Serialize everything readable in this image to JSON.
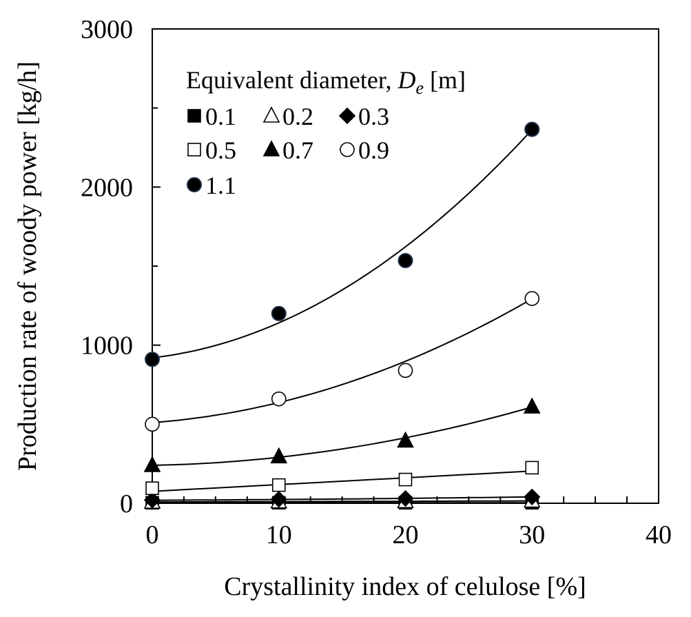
{
  "chart_data": {
    "type": "scatter",
    "xlabel": "Crystallinity index of celulose [%]",
    "ylabel": "Production rate of woody power [kg/h]",
    "xlim": [
      0,
      40
    ],
    "ylim": [
      0,
      3000
    ],
    "xticks": [
      0,
      10,
      20,
      30,
      40
    ],
    "yticks": [
      0,
      1000,
      2000,
      3000
    ],
    "grid": false,
    "legend": {
      "title_prefix": "Equivalent diameter, ",
      "title_symbol": "D",
      "title_subscript": "e",
      "title_unit": " [m]",
      "placement": "top-left"
    },
    "x": [
      0,
      10,
      20,
      30
    ],
    "series": [
      {
        "name": "0.1",
        "marker": "square-filled",
        "values": [
          3,
          3,
          3,
          3
        ],
        "fit": [
          3,
          0,
          0
        ]
      },
      {
        "name": "0.2",
        "marker": "triangle-open",
        "values": [
          8,
          10,
          12,
          15
        ],
        "fit": [
          8,
          0.23,
          0
        ]
      },
      {
        "name": "0.3",
        "marker": "diamond-filled",
        "values": [
          20,
          25,
          30,
          40
        ],
        "fit": [
          19,
          0.35,
          0.012
        ]
      },
      {
        "name": "0.5",
        "marker": "square-open",
        "values": [
          95,
          115,
          150,
          225
        ],
        "fit": [
          75,
          4.3,
          0
        ]
      },
      {
        "name": "0.7",
        "marker": "triangle-filled",
        "values": [
          240,
          295,
          395,
          610
        ],
        "fit": [
          240,
          1.5,
          0.36
        ]
      },
      {
        "name": "0.9",
        "marker": "circle-open",
        "values": [
          500,
          660,
          840,
          1295
        ],
        "fit": [
          510,
          6,
          0.67
        ]
      },
      {
        "name": "1.1",
        "marker": "circle-filled",
        "values": [
          910,
          1200,
          1535,
          2365
        ],
        "fit": [
          920,
          9.1,
          1.3
        ]
      }
    ]
  }
}
